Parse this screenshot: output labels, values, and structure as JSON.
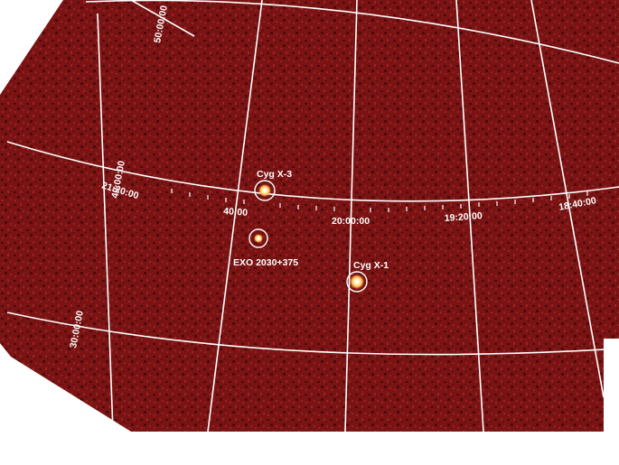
{
  "colors": {
    "background": "#ffffff",
    "sky": "#7a1414",
    "noise_dark": "#4e0a0a",
    "noise_light": "#9a2222",
    "grid": "#ffffff",
    "source_core": "#fff6c8",
    "source_glow": "#ffb347"
  },
  "grid_labels": {
    "dec_50": "50:00:00",
    "dec_40": "40:00:00",
    "dec_30": "30:00:00",
    "ra_2120": "21:20:00",
    "ra_2040": "40:00",
    "ra_2000": "20:00:00",
    "ra_1920": "19:20:00",
    "ra_1840": "18:40:00"
  },
  "sources": [
    {
      "name": "Cyg X-3"
    },
    {
      "name": "EXO 2030+375"
    },
    {
      "name": "Cyg X-1"
    }
  ]
}
